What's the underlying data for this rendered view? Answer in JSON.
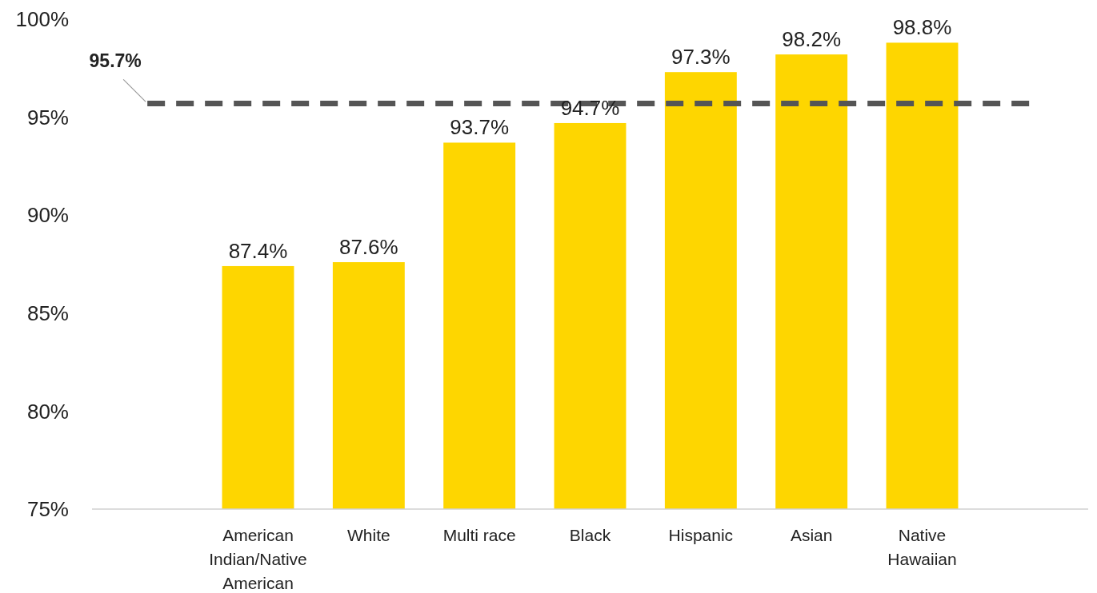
{
  "chart_data": {
    "type": "bar",
    "categories": [
      null,
      "American Indian/Native American",
      "White",
      "Multi race",
      "Black",
      "Hispanic",
      "Asian",
      "Native Hawaiian",
      null
    ],
    "values": [
      null,
      87.4,
      87.6,
      93.7,
      94.7,
      97.3,
      98.2,
      98.8,
      null
    ],
    "color": "#fed600",
    "value_labels": [
      null,
      "87.4%",
      "87.6%",
      "93.7%",
      "94.7%",
      "97.3%",
      "98.2%",
      "98.8%",
      null
    ],
    "ylim": [
      75,
      100
    ],
    "yticks": [
      {
        "value": 75,
        "label": "75%"
      },
      {
        "value": 80,
        "label": "80%"
      },
      {
        "value": 85,
        "label": "85%"
      },
      {
        "value": 90,
        "label": "90%"
      },
      {
        "value": 95,
        "label": "95%"
      },
      {
        "value": 100,
        "label": "100%"
      }
    ],
    "ref_lines": [
      {
        "axis": "y",
        "value": 95.7,
        "label": "95.7%",
        "color": "#555555",
        "line_style": "dashed"
      }
    ],
    "grid": false
  }
}
